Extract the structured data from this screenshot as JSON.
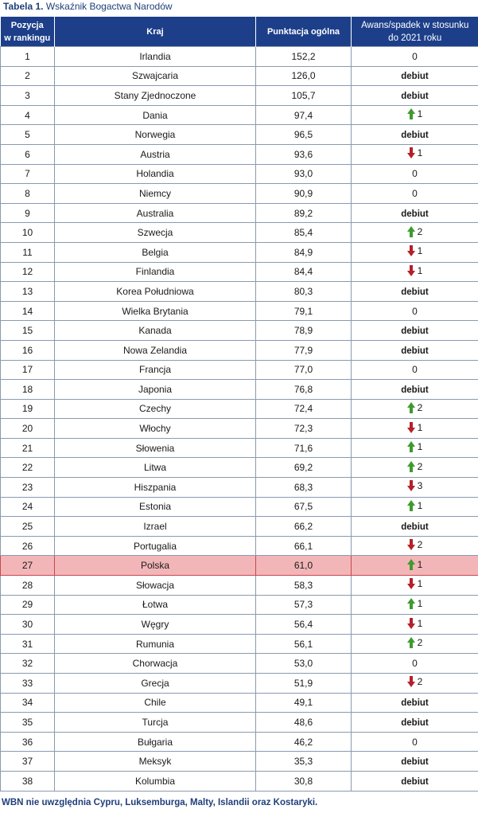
{
  "caption": {
    "label": "Tabela 1.",
    "title": "Wskaźnik Bogactwa Narodów"
  },
  "columns": {
    "rank_line1": "Pozycja",
    "rank_line2": "w rankingu",
    "country": "Kraj",
    "score": "Punktacja ogólna",
    "change_line1": "Awans/spadek w stosunku",
    "change_line2": "do 2021 roku"
  },
  "colors": {
    "header_bg": "#1d3f8a",
    "up": "#3f9a2f",
    "down": "#b3212a",
    "highlight": "#f2b6b8"
  },
  "highlight_country": "Polska",
  "rows": [
    {
      "rank": "1",
      "country": "Irlandia",
      "score": "152,2",
      "change": "0",
      "dir": "none"
    },
    {
      "rank": "2",
      "country": "Szwajcaria",
      "score": "126,0",
      "change": "debiut",
      "dir": "debut"
    },
    {
      "rank": "3",
      "country": "Stany Zjednoczone",
      "score": "105,7",
      "change": "debiut",
      "dir": "debut"
    },
    {
      "rank": "4",
      "country": "Dania",
      "score": "97,4",
      "change": "1",
      "dir": "up"
    },
    {
      "rank": "5",
      "country": "Norwegia",
      "score": "96,5",
      "change": "debiut",
      "dir": "debut"
    },
    {
      "rank": "6",
      "country": "Austria",
      "score": "93,6",
      "change": "1",
      "dir": "down"
    },
    {
      "rank": "7",
      "country": "Holandia",
      "score": "93,0",
      "change": "0",
      "dir": "none"
    },
    {
      "rank": "8",
      "country": "Niemcy",
      "score": "90,9",
      "change": "0",
      "dir": "none"
    },
    {
      "rank": "9",
      "country": "Australia",
      "score": "89,2",
      "change": "debiut",
      "dir": "debut"
    },
    {
      "rank": "10",
      "country": "Szwecja",
      "score": "85,4",
      "change": "2",
      "dir": "up"
    },
    {
      "rank": "11",
      "country": "Belgia",
      "score": "84,9",
      "change": "1",
      "dir": "down"
    },
    {
      "rank": "12",
      "country": "Finlandia",
      "score": "84,4",
      "change": "1",
      "dir": "down"
    },
    {
      "rank": "13",
      "country": "Korea Południowa",
      "score": "80,3",
      "change": "debiut",
      "dir": "debut"
    },
    {
      "rank": "14",
      "country": "Wielka Brytania",
      "score": "79,1",
      "change": "0",
      "dir": "none"
    },
    {
      "rank": "15",
      "country": "Kanada",
      "score": "78,9",
      "change": "debiut",
      "dir": "debut"
    },
    {
      "rank": "16",
      "country": "Nowa Zelandia",
      "score": "77,9",
      "change": "debiut",
      "dir": "debut"
    },
    {
      "rank": "17",
      "country": "Francja",
      "score": "77,0",
      "change": "0",
      "dir": "none"
    },
    {
      "rank": "18",
      "country": "Japonia",
      "score": "76,8",
      "change": "debiut",
      "dir": "debut"
    },
    {
      "rank": "19",
      "country": "Czechy",
      "score": "72,4",
      "change": "2",
      "dir": "up"
    },
    {
      "rank": "20",
      "country": "Włochy",
      "score": "72,3",
      "change": "1",
      "dir": "down"
    },
    {
      "rank": "21",
      "country": "Słowenia",
      "score": "71,6",
      "change": "1",
      "dir": "up"
    },
    {
      "rank": "22",
      "country": "Litwa",
      "score": "69,2",
      "change": "2",
      "dir": "up"
    },
    {
      "rank": "23",
      "country": "Hiszpania",
      "score": "68,3",
      "change": "3",
      "dir": "down"
    },
    {
      "rank": "24",
      "country": "Estonia",
      "score": "67,5",
      "change": "1",
      "dir": "up"
    },
    {
      "rank": "25",
      "country": "Izrael",
      "score": "66,2",
      "change": "debiut",
      "dir": "debut"
    },
    {
      "rank": "26",
      "country": "Portugalia",
      "score": "66,1",
      "change": "2",
      "dir": "down"
    },
    {
      "rank": "27",
      "country": "Polska",
      "score": "61,0",
      "change": "1",
      "dir": "up"
    },
    {
      "rank": "28",
      "country": "Słowacja",
      "score": "58,3",
      "change": "1",
      "dir": "down"
    },
    {
      "rank": "29",
      "country": "Łotwa",
      "score": "57,3",
      "change": "1",
      "dir": "up"
    },
    {
      "rank": "30",
      "country": "Węgry",
      "score": "56,4",
      "change": "1",
      "dir": "down"
    },
    {
      "rank": "31",
      "country": "Rumunia",
      "score": "56,1",
      "change": "2",
      "dir": "up"
    },
    {
      "rank": "32",
      "country": "Chorwacja",
      "score": "53,0",
      "change": "0",
      "dir": "none"
    },
    {
      "rank": "33",
      "country": "Grecja",
      "score": "51,9",
      "change": "2",
      "dir": "down"
    },
    {
      "rank": "34",
      "country": "Chile",
      "score": "49,1",
      "change": "debiut",
      "dir": "debut"
    },
    {
      "rank": "35",
      "country": "Turcja",
      "score": "48,6",
      "change": "debiut",
      "dir": "debut"
    },
    {
      "rank": "36",
      "country": "Bułgaria",
      "score": "46,2",
      "change": "0",
      "dir": "none"
    },
    {
      "rank": "37",
      "country": "Meksyk",
      "score": "35,3",
      "change": "debiut",
      "dir": "debut"
    },
    {
      "rank": "38",
      "country": "Kolumbia",
      "score": "30,8",
      "change": "debiut",
      "dir": "debut"
    }
  ],
  "footnote": "WBN nie uwzględnia Cypru, Luksemburga, Malty, Islandii oraz Kostaryki."
}
